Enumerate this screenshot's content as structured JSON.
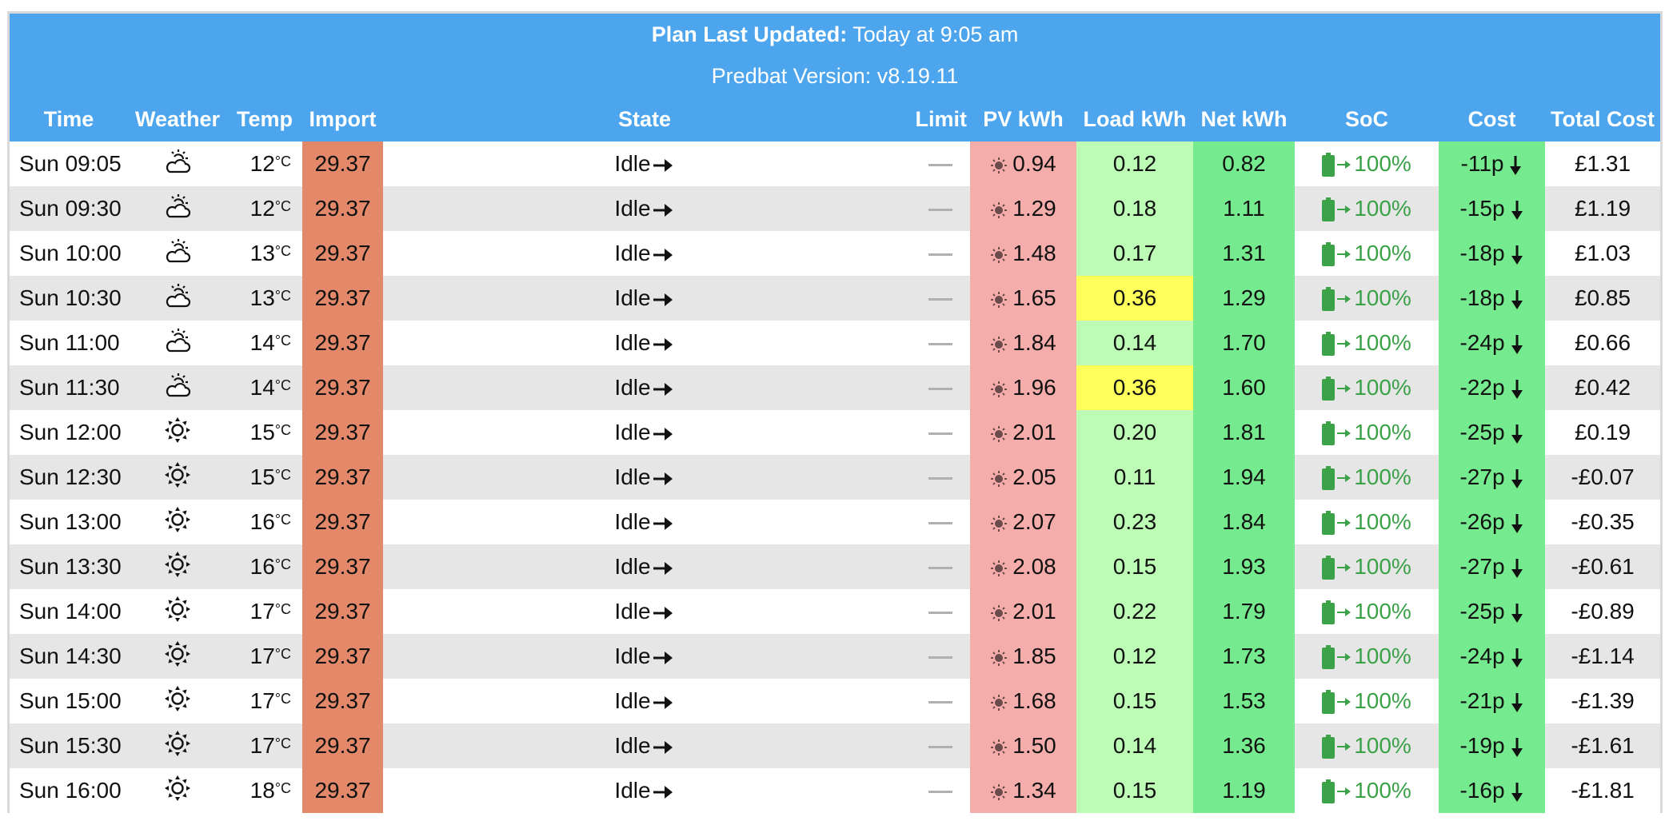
{
  "header": {
    "updated_label": "Plan Last Updated:",
    "updated_value": "Today at 9:05 am",
    "version": "Predbat Version: v8.19.11"
  },
  "columns": {
    "time": "Time",
    "weather": "Weather",
    "temp": "Temp",
    "import": "Import",
    "state": "State",
    "limit": "Limit",
    "pv": "PV kWh",
    "load": "Load kWh",
    "net": "Net kWh",
    "soc": "SoC",
    "cost": "Cost",
    "total": "Total Cost"
  },
  "temp_unit": "°C",
  "colors": {
    "header": "#4ca5ed",
    "import": "#e3896a",
    "pv": "#f4adab",
    "load": "#bcfcb5",
    "load_high": "#ffff5c",
    "net": "#75ea8e",
    "cost": "#75ea8e",
    "soc": "#3ca24a"
  },
  "rows": [
    {
      "time": "Sun 09:05",
      "weather": "partly-cloudy-icon",
      "temp": "12",
      "import": "29.37",
      "state": "Idle",
      "pv": "0.94",
      "load": "0.12",
      "load_high": false,
      "net": "0.82",
      "soc": "100%",
      "cost": "-11p",
      "total": "£1.31"
    },
    {
      "time": "Sun 09:30",
      "weather": "partly-cloudy-icon",
      "temp": "12",
      "import": "29.37",
      "state": "Idle",
      "pv": "1.29",
      "load": "0.18",
      "load_high": false,
      "net": "1.11",
      "soc": "100%",
      "cost": "-15p",
      "total": "£1.19"
    },
    {
      "time": "Sun 10:00",
      "weather": "partly-cloudy-icon",
      "temp": "13",
      "import": "29.37",
      "state": "Idle",
      "pv": "1.48",
      "load": "0.17",
      "load_high": false,
      "net": "1.31",
      "soc": "100%",
      "cost": "-18p",
      "total": "£1.03"
    },
    {
      "time": "Sun 10:30",
      "weather": "partly-cloudy-icon",
      "temp": "13",
      "import": "29.37",
      "state": "Idle",
      "pv": "1.65",
      "load": "0.36",
      "load_high": true,
      "net": "1.29",
      "soc": "100%",
      "cost": "-18p",
      "total": "£0.85"
    },
    {
      "time": "Sun 11:00",
      "weather": "partly-cloudy-icon",
      "temp": "14",
      "import": "29.37",
      "state": "Idle",
      "pv": "1.84",
      "load": "0.14",
      "load_high": false,
      "net": "1.70",
      "soc": "100%",
      "cost": "-24p",
      "total": "£0.66"
    },
    {
      "time": "Sun 11:30",
      "weather": "partly-cloudy-icon",
      "temp": "14",
      "import": "29.37",
      "state": "Idle",
      "pv": "1.96",
      "load": "0.36",
      "load_high": true,
      "net": "1.60",
      "soc": "100%",
      "cost": "-22p",
      "total": "£0.42"
    },
    {
      "time": "Sun 12:00",
      "weather": "sunny-icon",
      "temp": "15",
      "import": "29.37",
      "state": "Idle",
      "pv": "2.01",
      "load": "0.20",
      "load_high": false,
      "net": "1.81",
      "soc": "100%",
      "cost": "-25p",
      "total": "£0.19"
    },
    {
      "time": "Sun 12:30",
      "weather": "sunny-icon",
      "temp": "15",
      "import": "29.37",
      "state": "Idle",
      "pv": "2.05",
      "load": "0.11",
      "load_high": false,
      "net": "1.94",
      "soc": "100%",
      "cost": "-27p",
      "total": "-£0.07"
    },
    {
      "time": "Sun 13:00",
      "weather": "sunny-icon",
      "temp": "16",
      "import": "29.37",
      "state": "Idle",
      "pv": "2.07",
      "load": "0.23",
      "load_high": false,
      "net": "1.84",
      "soc": "100%",
      "cost": "-26p",
      "total": "-£0.35"
    },
    {
      "time": "Sun 13:30",
      "weather": "sunny-icon",
      "temp": "16",
      "import": "29.37",
      "state": "Idle",
      "pv": "2.08",
      "load": "0.15",
      "load_high": false,
      "net": "1.93",
      "soc": "100%",
      "cost": "-27p",
      "total": "-£0.61"
    },
    {
      "time": "Sun 14:00",
      "weather": "sunny-icon",
      "temp": "17",
      "import": "29.37",
      "state": "Idle",
      "pv": "2.01",
      "load": "0.22",
      "load_high": false,
      "net": "1.79",
      "soc": "100%",
      "cost": "-25p",
      "total": "-£0.89"
    },
    {
      "time": "Sun 14:30",
      "weather": "sunny-icon",
      "temp": "17",
      "import": "29.37",
      "state": "Idle",
      "pv": "1.85",
      "load": "0.12",
      "load_high": false,
      "net": "1.73",
      "soc": "100%",
      "cost": "-24p",
      "total": "-£1.14"
    },
    {
      "time": "Sun 15:00",
      "weather": "sunny-icon",
      "temp": "17",
      "import": "29.37",
      "state": "Idle",
      "pv": "1.68",
      "load": "0.15",
      "load_high": false,
      "net": "1.53",
      "soc": "100%",
      "cost": "-21p",
      "total": "-£1.39"
    },
    {
      "time": "Sun 15:30",
      "weather": "sunny-icon",
      "temp": "17",
      "import": "29.37",
      "state": "Idle",
      "pv": "1.50",
      "load": "0.14",
      "load_high": false,
      "net": "1.36",
      "soc": "100%",
      "cost": "-19p",
      "total": "-£1.61"
    },
    {
      "time": "Sun 16:00",
      "weather": "sunny-icon",
      "temp": "18",
      "import": "29.37",
      "state": "Idle",
      "pv": "1.34",
      "load": "0.15",
      "load_high": false,
      "net": "1.19",
      "soc": "100%",
      "cost": "-16p",
      "total": "-£1.81"
    }
  ]
}
